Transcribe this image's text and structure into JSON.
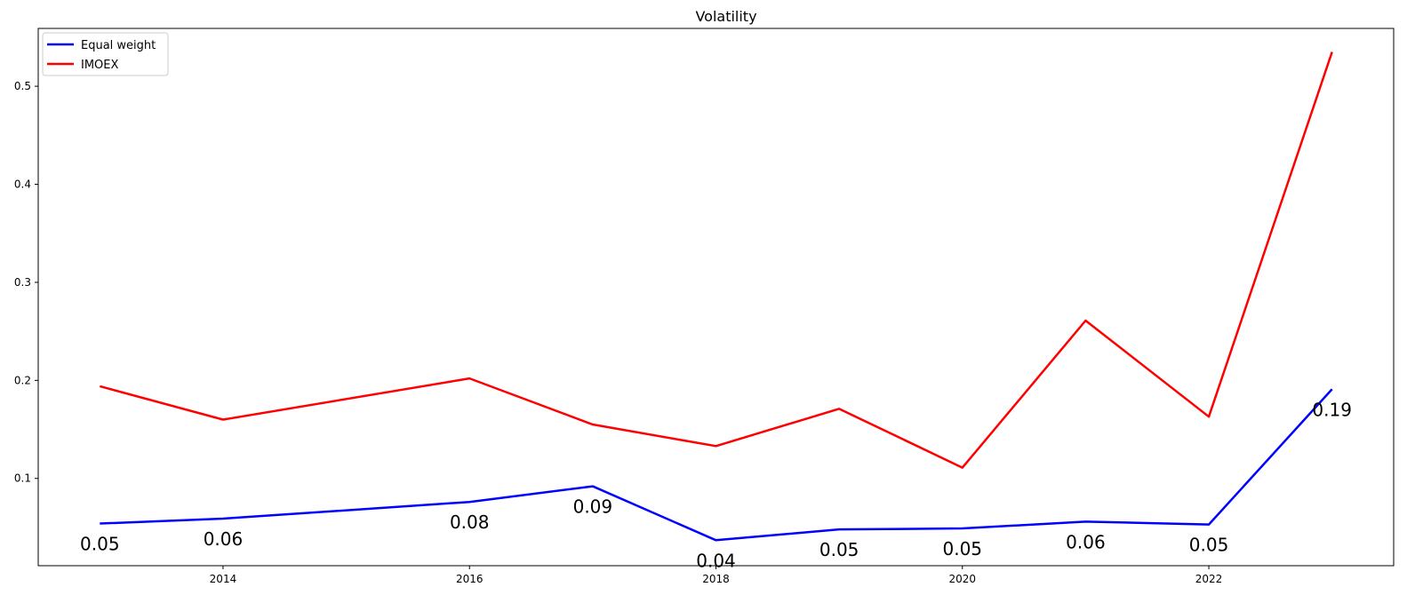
{
  "chart_data": {
    "type": "line",
    "title": "Volatility",
    "xlabel": "",
    "ylabel": "",
    "x": [
      2013,
      2014,
      2016,
      2017,
      2018,
      2019,
      2020,
      2021,
      2022,
      2023
    ],
    "x_ticks": [
      "2014",
      "2016",
      "2018",
      "2020",
      "2022"
    ],
    "y_ticks": [
      "0.1",
      "0.2",
      "0.3",
      "0.4",
      "0.5"
    ],
    "xlim": [
      2012.5,
      2023.5
    ],
    "ylim": [
      0.011,
      0.559
    ],
    "grid": false,
    "legend_position": "top-left",
    "series": [
      {
        "name": "Equal weight",
        "color": "#0000ff",
        "values": [
          0.054,
          0.059,
          0.076,
          0.092,
          0.037,
          0.048,
          0.049,
          0.056,
          0.053,
          0.191
        ],
        "labels": [
          "0.05",
          "0.06",
          "0.08",
          "0.09",
          "0.04",
          "0.05",
          "0.05",
          "0.06",
          "0.05",
          "0.19"
        ]
      },
      {
        "name": "IMOEX",
        "color": "#ff0000",
        "values": [
          0.194,
          0.16,
          0.202,
          0.155,
          0.133,
          0.171,
          0.111,
          0.261,
          0.163,
          0.535
        ]
      }
    ]
  }
}
